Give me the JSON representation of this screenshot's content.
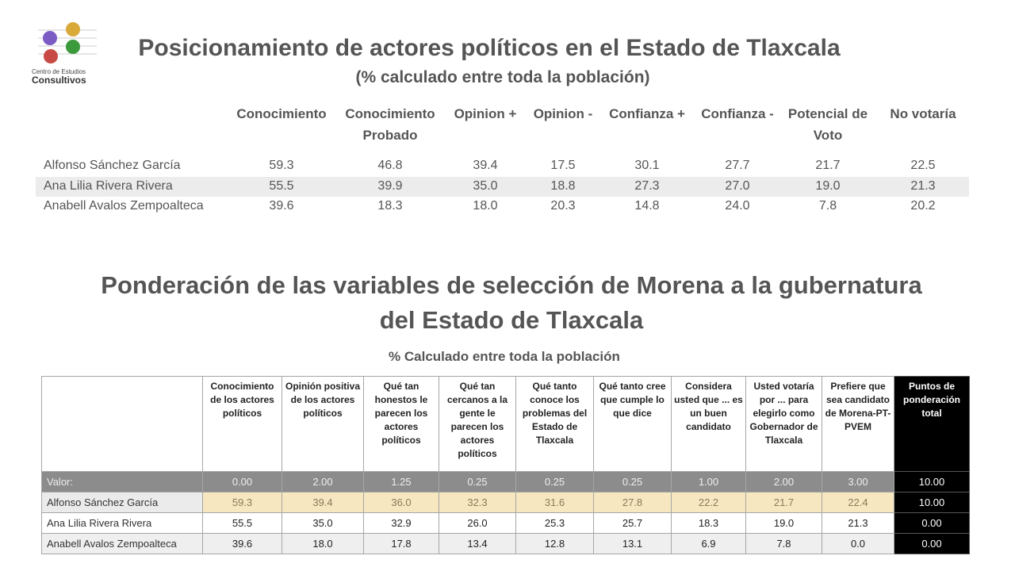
{
  "logo": {
    "line1": "Centro de Estudios",
    "line2": "Consultivos",
    "colors": [
      "#7b5cc4",
      "#d9a93a",
      "#3c9a3c",
      "#c84a44"
    ]
  },
  "title1": "Posicionamiento de actores políticos en el Estado de Tlaxcala",
  "subtitle1": "(% calculado entre toda la población)",
  "table1": {
    "headers": [
      "Conocimiento",
      "Conocimiento Probado",
      "Opinion +",
      "Opinion -",
      "Confianza +",
      "Confianza -",
      "Potencial de Voto",
      "No votaría"
    ],
    "rows": [
      {
        "name": "Alfonso Sánchez García",
        "values": [
          "59.3",
          "46.8",
          "39.4",
          "17.5",
          "30.1",
          "27.7",
          "21.7",
          "22.5"
        ]
      },
      {
        "name": "Ana Lilia Rivera Rivera",
        "values": [
          "55.5",
          "39.9",
          "35.0",
          "18.8",
          "27.3",
          "27.0",
          "19.0",
          "21.3"
        ]
      },
      {
        "name": "Anabell Avalos Zempoalteca",
        "values": [
          "39.6",
          "18.3",
          "18.0",
          "20.3",
          "14.8",
          "24.0",
          "7.8",
          "20.2"
        ]
      }
    ]
  },
  "title2_line1": "Ponderación de las variables de selección de Morena a la gubernatura",
  "title2_line2": "del Estado de Tlaxcala",
  "subtitle2": "% Calculado entre toda la población",
  "table2": {
    "headers": [
      "Conocimiento de los actores políticos",
      "Opinión positiva de los actores políticos",
      "Qué tan honestos le parecen los actores políticos",
      "Qué tan cercanos a la gente le parecen los actores políticos",
      "Qué tanto conoce los problemas del Estado de Tlaxcala",
      "Qué tanto cree que cumple lo que dice",
      "Considera usted que ... es un buen candidato",
      "Usted votaría por ... para elegirlo como Gobernador de Tlaxcala",
      "Prefiere que sea candidato de Morena-PT-PVEM",
      "Puntos de ponderación total"
    ],
    "valor": {
      "label": "Valor:",
      "values": [
        "0.00",
        "2.00",
        "1.25",
        "0.25",
        "0.25",
        "0.25",
        "1.00",
        "2.00",
        "3.00",
        "10.00"
      ]
    },
    "rows": [
      {
        "name": "Alfonso Sánchez García",
        "values": [
          "59.3",
          "39.4",
          "36.0",
          "32.3",
          "31.6",
          "27.8",
          "22.2",
          "21.7",
          "22.4",
          "10.00"
        ]
      },
      {
        "name": "Ana Lilia Rivera Rivera",
        "values": [
          "55.5",
          "35.0",
          "32.9",
          "26.0",
          "25.3",
          "25.7",
          "18.3",
          "19.0",
          "21.3",
          "0.00"
        ]
      },
      {
        "name": "Anabell Avalos Zempoalteca",
        "values": [
          "39.6",
          "18.0",
          "17.8",
          "13.4",
          "12.8",
          "13.1",
          "6.9",
          "7.8",
          "0.0",
          "0.00"
        ]
      }
    ],
    "highlight_color": "#f6e7c1"
  }
}
